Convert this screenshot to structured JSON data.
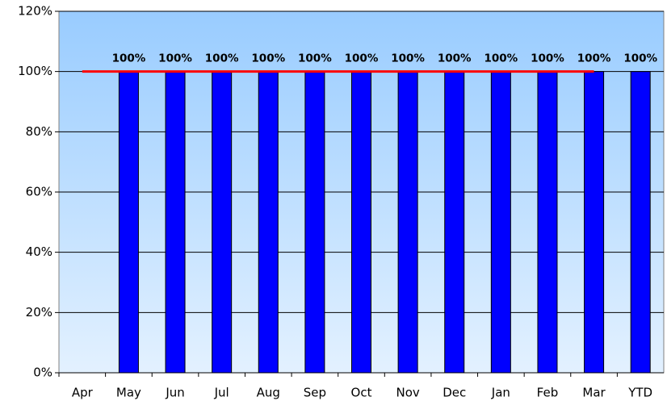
{
  "chart_data": {
    "type": "bar",
    "categories": [
      "Apr",
      "May",
      "Jun",
      "Jul",
      "Aug",
      "Sep",
      "Oct",
      "Nov",
      "Dec",
      "Jan",
      "Feb",
      "Mar",
      "YTD"
    ],
    "series": [
      {
        "type": "bar",
        "color": "#0000ff",
        "values": [
          null,
          100,
          100,
          100,
          100,
          100,
          100,
          100,
          100,
          100,
          100,
          100,
          100
        ],
        "value_labels": [
          null,
          "100%",
          "100%",
          "100%",
          "100%",
          "100%",
          "100%",
          "100%",
          "100%",
          "100%",
          "100%",
          "100%",
          "100%"
        ]
      },
      {
        "type": "line",
        "color": "#ff0000",
        "values": [
          100,
          100,
          100,
          100,
          100,
          100,
          100,
          100,
          100,
          100,
          100,
          100,
          null
        ]
      }
    ],
    "ylim": [
      0,
      120
    ],
    "yticks": [
      {
        "value": 0,
        "label": "0%"
      },
      {
        "value": 20,
        "label": "20%"
      },
      {
        "value": 40,
        "label": "40%"
      },
      {
        "value": 60,
        "label": "60%"
      },
      {
        "value": 80,
        "label": "80%"
      },
      {
        "value": 100,
        "label": "100%"
      },
      {
        "value": 120,
        "label": "120%"
      }
    ],
    "grid": true
  }
}
